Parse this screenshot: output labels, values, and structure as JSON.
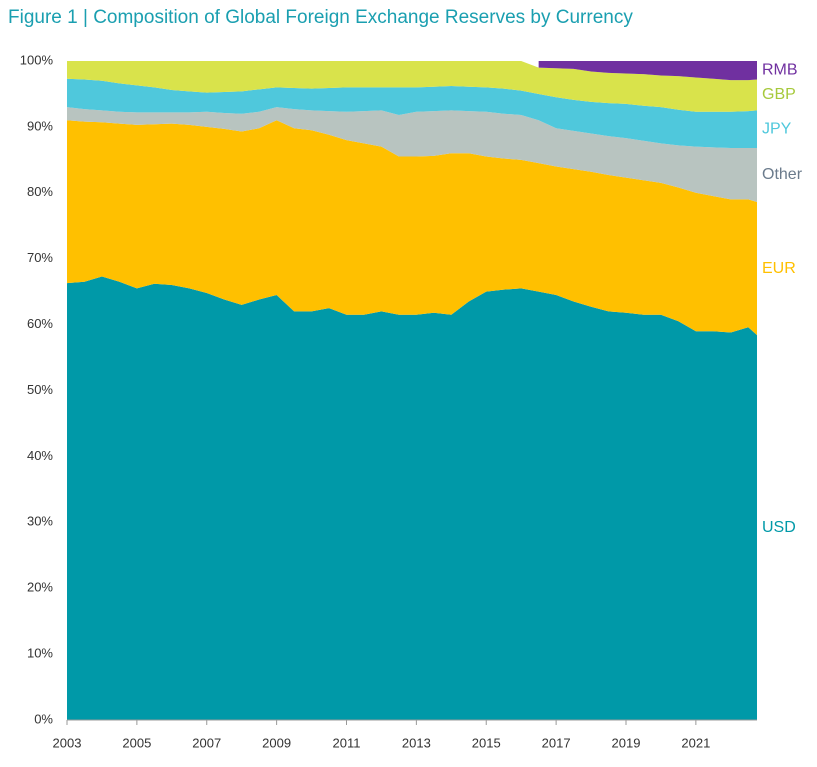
{
  "chart_data": {
    "type": "stacked_area",
    "title": "Figure 1 | Composition of Global Foreign Exchange Reserves by Currency",
    "x": [
      2003,
      2003.5,
      2004,
      2004.5,
      2005,
      2005.5,
      2006,
      2006.5,
      2007,
      2007.5,
      2008,
      2008.5,
      2009,
      2009.5,
      2010,
      2010.5,
      2011,
      2011.5,
      2012,
      2012.5,
      2013,
      2013.5,
      2014,
      2014.5,
      2015,
      2015.5,
      2016,
      2016.5,
      2017,
      2017.5,
      2018,
      2018.5,
      2019,
      2019.5,
      2020,
      2020.5,
      2021,
      2021.5,
      2022,
      2022.5,
      2022.75
    ],
    "xlim": [
      2003,
      2022.75
    ],
    "xticks": [
      2003,
      2005,
      2007,
      2009,
      2011,
      2013,
      2015,
      2017,
      2019,
      2021
    ],
    "ylim": [
      0,
      100
    ],
    "yticks": [
      {
        "value": 0,
        "label": "0%"
      },
      {
        "value": 10,
        "label": "10%"
      },
      {
        "value": 20,
        "label": "20%"
      },
      {
        "value": 30,
        "label": "30%"
      },
      {
        "value": 40,
        "label": "40%"
      },
      {
        "value": 50,
        "label": "50%"
      },
      {
        "value": 60,
        "label": "60%"
      },
      {
        "value": 70,
        "label": "70%"
      },
      {
        "value": 80,
        "label": "80%"
      },
      {
        "value": 90,
        "label": "90%"
      },
      {
        "value": 100,
        "label": "100%"
      }
    ],
    "grid": false,
    "series": [
      {
        "name": "USD",
        "color": "#0099a8",
        "label_color": "#0099a8",
        "values": [
          66.3,
          66.5,
          67.3,
          66.5,
          65.5,
          66.2,
          66.0,
          65.5,
          64.8,
          63.8,
          63.0,
          63.8,
          64.5,
          62.0,
          62.0,
          62.5,
          61.5,
          61.5,
          62.0,
          61.5,
          61.5,
          61.8,
          61.5,
          63.5,
          65.0,
          65.3,
          65.5,
          65.0,
          64.5,
          63.5,
          62.7,
          62.0,
          61.8,
          61.5,
          61.5,
          60.5,
          59.0,
          59.0,
          58.8,
          59.6,
          58.4
        ]
      },
      {
        "name": "EUR",
        "color": "#ffc000",
        "label_color": "#ffc000",
        "values": [
          24.7,
          24.3,
          23.4,
          24.0,
          24.8,
          24.2,
          24.5,
          24.8,
          25.2,
          25.9,
          26.3,
          26.0,
          26.5,
          27.8,
          27.5,
          26.3,
          26.5,
          26.0,
          25.0,
          24.0,
          24.0,
          23.8,
          24.5,
          22.5,
          20.5,
          19.9,
          19.5,
          19.5,
          19.5,
          20.1,
          20.5,
          20.7,
          20.5,
          20.4,
          20.0,
          20.3,
          21.0,
          20.5,
          20.2,
          19.4,
          20.2
        ]
      },
      {
        "name": "Other",
        "color": "#b8c4c0",
        "label_color": "#6b7b8c",
        "values": [
          2.0,
          1.9,
          1.8,
          1.8,
          1.9,
          1.8,
          1.7,
          1.9,
          2.3,
          2.4,
          2.7,
          2.5,
          2.0,
          2.9,
          3.0,
          3.6,
          4.3,
          4.9,
          5.5,
          6.3,
          6.8,
          6.8,
          6.5,
          6.4,
          6.8,
          6.8,
          6.8,
          6.5,
          5.8,
          5.8,
          5.8,
          5.9,
          6.0,
          6.0,
          6.0,
          6.4,
          7.0,
          7.4,
          7.8,
          7.8,
          8.2
        ]
      },
      {
        "name": "JPY",
        "color": "#4fc8dc",
        "label_color": "#4fc8dc",
        "values": [
          4.3,
          4.5,
          4.5,
          4.3,
          4.1,
          3.8,
          3.4,
          3.2,
          2.9,
          3.2,
          3.4,
          3.4,
          3.0,
          3.2,
          3.3,
          3.5,
          3.7,
          3.6,
          3.5,
          4.2,
          3.7,
          3.7,
          3.7,
          3.7,
          3.7,
          3.8,
          3.7,
          4.0,
          4.7,
          4.7,
          4.8,
          5.0,
          5.2,
          5.3,
          5.5,
          5.4,
          5.3,
          5.4,
          5.5,
          5.6,
          5.7
        ]
      },
      {
        "name": "GBP",
        "color": "#d9e34b",
        "label_color": "#a6c93b",
        "values": [
          2.7,
          2.8,
          3.0,
          3.4,
          3.7,
          4.0,
          4.4,
          4.6,
          4.8,
          4.7,
          4.6,
          4.3,
          4.0,
          4.1,
          4.2,
          4.1,
          4.0,
          4.0,
          4.0,
          4.0,
          4.0,
          3.9,
          3.8,
          3.9,
          4.0,
          4.2,
          4.5,
          4.0,
          4.4,
          4.7,
          4.6,
          4.6,
          4.6,
          4.8,
          4.8,
          5.1,
          5.2,
          5.0,
          4.8,
          4.7,
          4.7
        ]
      },
      {
        "name": "RMB",
        "color": "#7030a0",
        "label_color": "#7030a0",
        "values": [
          null,
          null,
          null,
          null,
          null,
          null,
          null,
          null,
          null,
          null,
          null,
          null,
          null,
          null,
          null,
          null,
          null,
          null,
          null,
          null,
          null,
          null,
          null,
          null,
          null,
          null,
          null,
          1.0,
          1.1,
          1.2,
          1.6,
          1.8,
          1.9,
          2.0,
          2.2,
          2.3,
          2.5,
          2.7,
          2.9,
          2.9,
          2.8
        ]
      }
    ]
  }
}
